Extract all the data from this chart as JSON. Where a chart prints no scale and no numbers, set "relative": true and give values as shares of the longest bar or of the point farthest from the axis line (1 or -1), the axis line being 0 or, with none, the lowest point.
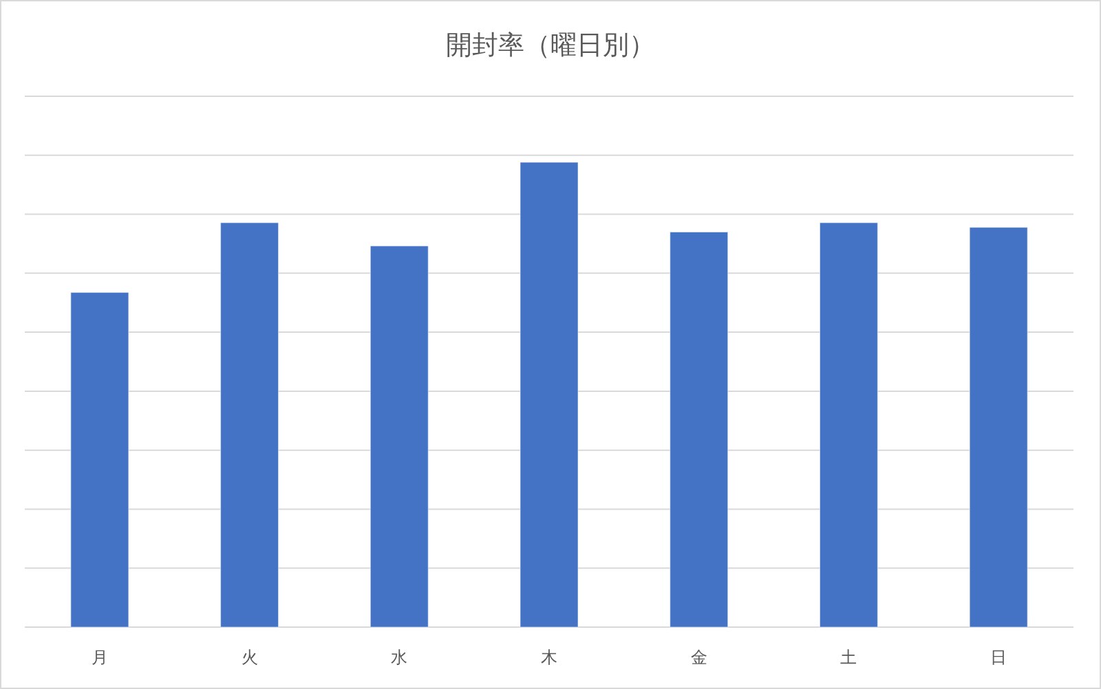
{
  "chart_data": {
    "type": "bar",
    "title": "開封率（曜日別）",
    "categories": [
      "月",
      "火",
      "水",
      "木",
      "金",
      "土",
      "日"
    ],
    "values": [
      0.72,
      0.87,
      0.82,
      1,
      0.85,
      0.87,
      0.86
    ],
    "color": "#4472c4",
    "relative": true,
    "grid": true
  }
}
